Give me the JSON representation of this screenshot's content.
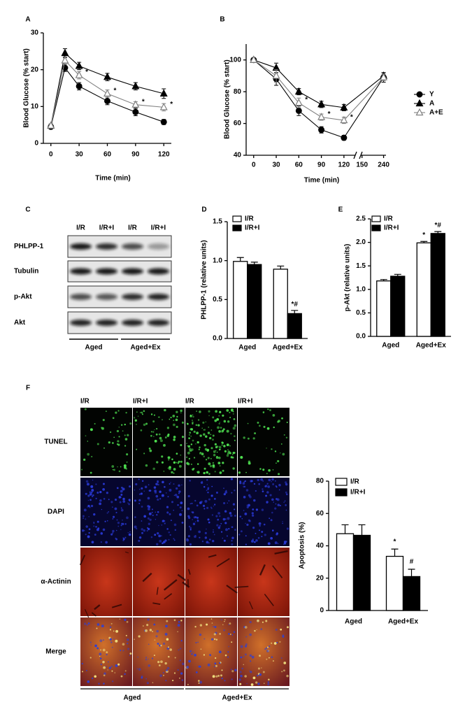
{
  "panel_labels": [
    "A",
    "B",
    "C",
    "D",
    "E",
    "F"
  ],
  "chart_data": [
    {
      "type": "line",
      "xlabel": "Time (min)",
      "ylabel": "Blood Glucose (% start)",
      "x": [
        0,
        15,
        30,
        60,
        90,
        120
      ],
      "xlim": [
        -8,
        128
      ],
      "xticks": [
        0,
        30,
        60,
        90,
        120
      ],
      "ylim": [
        0,
        30
      ],
      "yticks": [
        0,
        10,
        20,
        30
      ],
      "series": [
        {
          "color": "#000000",
          "marker": "circle",
          "values": [
            4.5,
            20.5,
            15.5,
            11.5,
            8.5,
            5.8
          ],
          "errors": [
            0.5,
            1,
            1,
            1,
            1,
            0.7
          ]
        },
        {
          "color": "#000000",
          "marker": "triangle",
          "values": [
            4.8,
            24.5,
            21,
            18,
            15.5,
            13.5
          ],
          "errors": [
            0.5,
            1.2,
            1,
            1,
            1,
            1.3
          ]
        },
        {
          "color": "#808080",
          "marker": "triangle-open",
          "values": [
            4.8,
            22.5,
            18.5,
            13.5,
            10.5,
            9.8
          ],
          "errors": [
            0.5,
            1,
            1,
            1,
            0.8,
            1
          ],
          "labels": [
            null,
            null,
            "*",
            "*",
            "*",
            "*"
          ]
        }
      ]
    },
    {
      "type": "line",
      "xlabel": "Time (min)",
      "ylabel": "Blood Glucose (% start)",
      "x": [
        0,
        30,
        60,
        90,
        120,
        240
      ],
      "xlim": [
        -10,
        250
      ],
      "xbreak": [
        135,
        145
      ],
      "xticks": [
        0,
        30,
        60,
        90,
        120,
        150,
        240
      ],
      "ylim": [
        40,
        110
      ],
      "yticks": [
        40,
        60,
        80,
        100
      ],
      "legend": "right",
      "series": [
        {
          "name": "Y",
          "color": "#000000",
          "marker": "circle",
          "values": [
            100,
            88,
            68,
            56,
            51,
            89
          ],
          "errors": [
            0,
            4,
            3,
            2,
            1.5,
            3
          ]
        },
        {
          "name": "A",
          "color": "#000000",
          "marker": "triangle",
          "values": [
            100,
            95,
            80,
            72,
            70,
            90
          ],
          "errors": [
            0,
            3,
            2,
            2,
            2,
            2
          ]
        },
        {
          "name": "A+E",
          "color": "#808080",
          "marker": "triangle-open",
          "values": [
            100,
            90,
            73,
            64,
            62,
            89
          ],
          "errors": [
            0,
            4,
            3,
            2,
            2,
            2
          ],
          "labels": [
            null,
            null,
            "*",
            "*",
            "*",
            null
          ]
        }
      ]
    },
    {
      "type": "bar",
      "ylabel": "PHLPP-1 (relative units)",
      "categories": [
        "Aged",
        "Aged+Ex"
      ],
      "ylim": [
        0,
        1.5
      ],
      "yticks": [
        {
          "value": 0,
          "label": "0.0"
        },
        {
          "value": 0.5,
          "label": "0.5"
        },
        {
          "value": 1,
          "label": "1.0"
        },
        {
          "value": 1.5,
          "label": "1.5"
        }
      ],
      "legend": "upper left",
      "series": [
        {
          "name": "I/R",
          "color": "#ffffff",
          "values": [
            0.99,
            0.89
          ],
          "errors": [
            0.05,
            0.04
          ]
        },
        {
          "name": "I/R+I",
          "color": "#000000",
          "values": [
            0.95,
            0.32
          ],
          "errors": [
            0.03,
            0.04
          ],
          "labels": [
            null,
            "*#"
          ]
        }
      ]
    },
    {
      "type": "bar",
      "ylabel": "p-Akt  (relative units)",
      "categories": [
        "Aged",
        "Aged+Ex"
      ],
      "ylim": [
        0,
        2.5
      ],
      "yticks": [
        {
          "value": 0,
          "label": "0.0"
        },
        {
          "value": 0.5,
          "label": "0.5"
        },
        {
          "value": 1,
          "label": "1.0"
        },
        {
          "value": 1.5,
          "label": "1.5"
        },
        {
          "value": 2,
          "label": "2.0"
        },
        {
          "value": 2.5,
          "label": "2.5"
        }
      ],
      "legend": "upper left",
      "series": [
        {
          "name": "I/R",
          "color": "#ffffff",
          "values": [
            1.18,
            1.99
          ],
          "errors": [
            0.03,
            0.03
          ],
          "labels": [
            null,
            "*"
          ]
        },
        {
          "name": "I/R+I",
          "color": "#000000",
          "values": [
            1.28,
            2.19
          ],
          "errors": [
            0.04,
            0.04
          ],
          "labels": [
            null,
            "*#"
          ]
        }
      ]
    },
    {
      "type": "bar",
      "ylabel": "Apoptosis (%)",
      "categories": [
        "Aged",
        "Aged+Ex"
      ],
      "ylim": [
        0,
        80
      ],
      "yticks": [
        0,
        20,
        40,
        60,
        80
      ],
      "legend": "upper left",
      "series": [
        {
          "name": "I/R",
          "color": "#ffffff",
          "values": [
            47.5,
            33.5
          ],
          "errors": [
            5.5,
            4.5
          ],
          "labels": [
            null,
            "*"
          ]
        },
        {
          "name": "I/R+I",
          "color": "#000000",
          "values": [
            46.5,
            21
          ],
          "errors": [
            6.5,
            4.5
          ],
          "labels": [
            null,
            "#"
          ]
        }
      ]
    }
  ],
  "blot": {
    "columns": [
      "I/R",
      "I/R+I",
      "I/R",
      "I/R+I"
    ],
    "rows": [
      "PHLPP-1",
      "Tubulin",
      "p-Akt",
      "Akt"
    ],
    "groups": [
      "Aged",
      "Aged+Ex"
    ]
  },
  "micrograph": {
    "columns": [
      "I/R",
      "I/R+I",
      "I/R",
      "I/R+I"
    ],
    "rows": [
      {
        "label": "TUNEL",
        "color": "#22b02a"
      },
      {
        "label": "DAPI",
        "color": "#1a62c0"
      },
      {
        "label": "α-Actinin",
        "color": "#e02020"
      },
      {
        "label": "Merge",
        "color": "#000000"
      }
    ],
    "groups": [
      "Aged",
      "Aged+Ex"
    ]
  }
}
